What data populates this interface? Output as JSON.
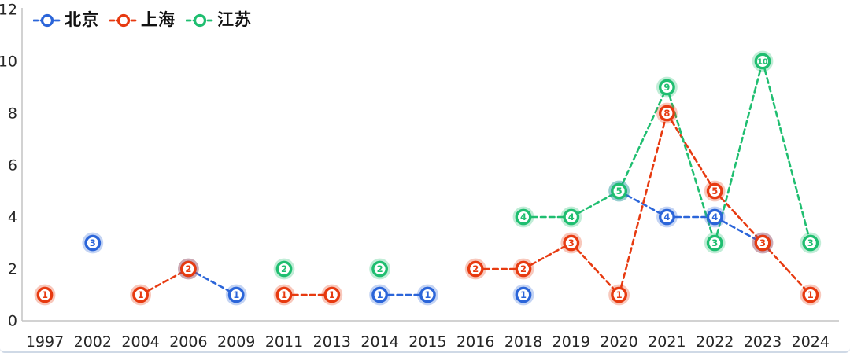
{
  "chart_data": {
    "type": "line",
    "title": "",
    "xlabel": "",
    "ylabel": "",
    "categories": [
      "1997",
      "2002",
      "2004",
      "2006",
      "2009",
      "2011",
      "2013",
      "2014",
      "2015",
      "2016",
      "2018",
      "2019",
      "2020",
      "2021",
      "2022",
      "2023",
      "2024"
    ],
    "series": [
      {
        "name": "北京",
        "color": "#2b65d9",
        "values": [
          null,
          3,
          null,
          2,
          1,
          null,
          null,
          1,
          1,
          null,
          1,
          null,
          5,
          4,
          4,
          3,
          null
        ]
      },
      {
        "name": "上海",
        "color": "#e73a10",
        "values": [
          1,
          null,
          1,
          2,
          null,
          1,
          1,
          null,
          null,
          2,
          2,
          3,
          1,
          8,
          5,
          3,
          1
        ]
      },
      {
        "name": "江苏",
        "color": "#1fbe70",
        "values": [
          null,
          null,
          null,
          null,
          null,
          2,
          null,
          2,
          null,
          null,
          4,
          4,
          5,
          9,
          3,
          10,
          3
        ]
      }
    ],
    "ylim": [
      0,
      12
    ],
    "yticks": [
      0,
      2,
      4,
      6,
      8,
      10,
      12
    ],
    "grid": false,
    "legend_position": "top-left",
    "line_style": "dashed",
    "marker_style": "white-circle-with-value-label",
    "connect_gaps": false
  },
  "colors": {
    "axis_line": "#c3c3c3",
    "tick_text": "#262626",
    "background": "#ffffff",
    "card_border": "#cfd9e6"
  }
}
